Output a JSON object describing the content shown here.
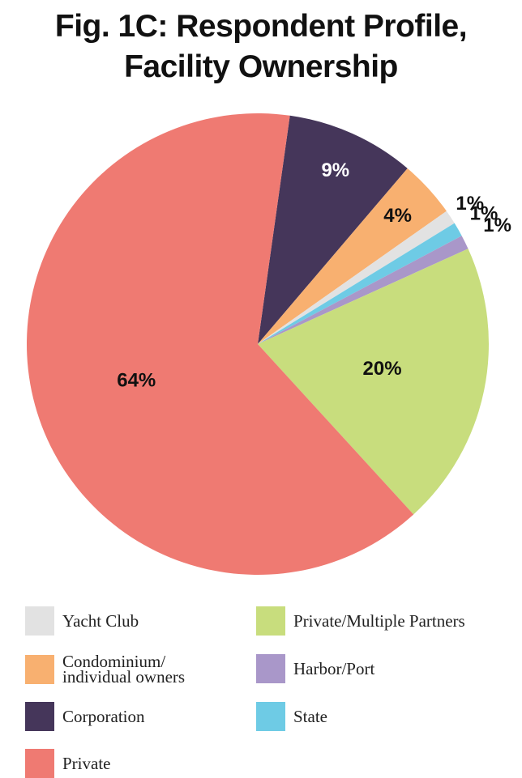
{
  "chart_data": {
    "type": "pie",
    "title": "Fig. 1C: Respondent Profile, Facility Ownership",
    "categories": [
      "Corporation",
      "Condominium/ individual owners",
      "Yacht Club",
      "State",
      "Harbor/Port",
      "Private/Multiple Partners",
      "Private"
    ],
    "values": [
      9,
      4,
      1,
      1,
      1,
      20,
      64
    ],
    "value_labels": [
      "9%",
      "4%",
      "1%",
      "1%",
      "1%",
      "20%",
      "64%"
    ],
    "colors": [
      "#45365a",
      "#f8b070",
      "#e2e2e2",
      "#6ecbe5",
      "#a997c9",
      "#c8dd7d",
      "#ef7a72"
    ]
  }
}
